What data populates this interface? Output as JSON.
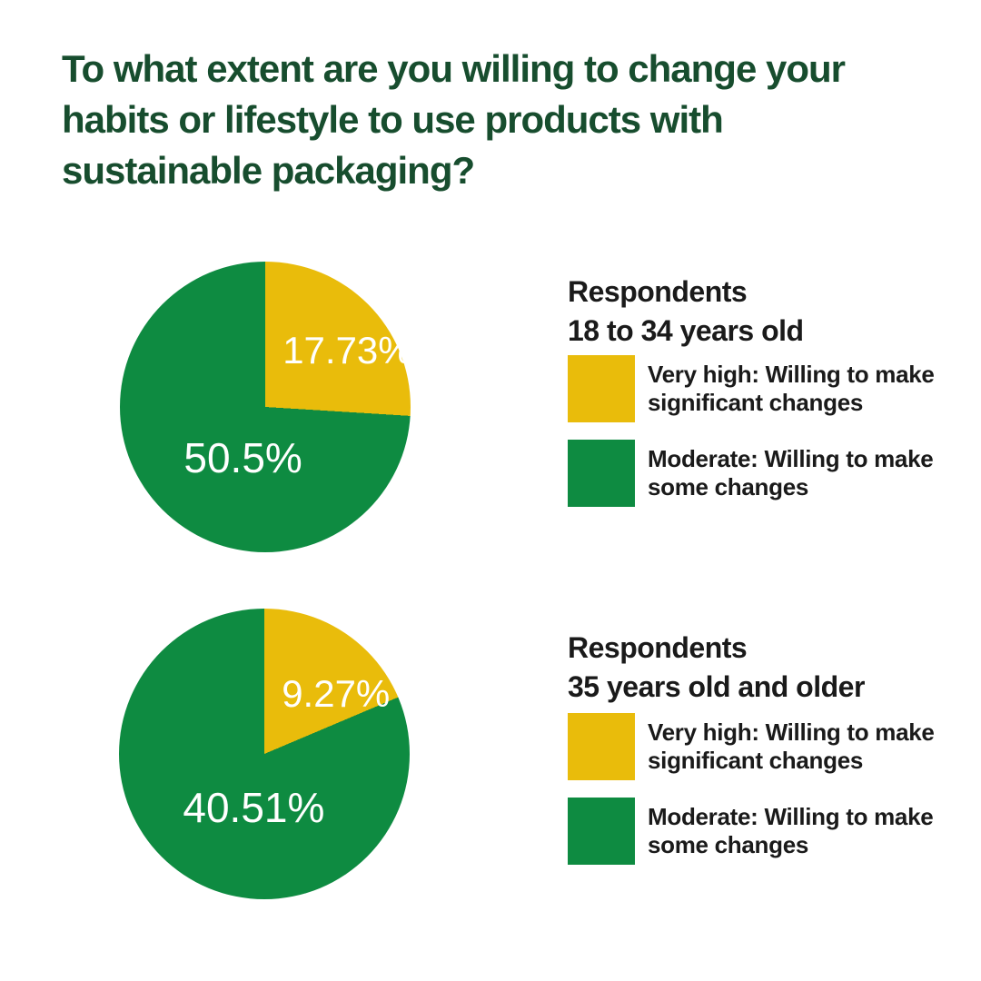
{
  "title": "To what extent are you willing to change your habits or lifestyle to use products with sustainable packaging?",
  "title_lines": [
    "To what extent are you willing to change your",
    "habits or lifestyle to use products with",
    "sustainable packaging?"
  ],
  "colors": {
    "background": "#FFFFFF",
    "title": "#174D2E",
    "text": "#1A1A1A",
    "slice_label": "#FFFFFF",
    "very_high": "#E9BC0B",
    "moderate": "#0E8B41"
  },
  "legend_labels": {
    "very_high": "Very high: Willing to make significant changes",
    "moderate": "Moderate: Willing to make some changes"
  },
  "chart_data": [
    {
      "type": "pie",
      "group_title_line1": "Respondents",
      "group_title_line2": "18 to 34 years old",
      "start_angle_deg": 0,
      "direction": "clockwise",
      "note": "slice arc angles are normalized to the sum of the two values",
      "slices": [
        {
          "label": "Very high: Willing to make significant changes",
          "value_pct": 17.73,
          "display": "17.73%",
          "color_key": "very_high"
        },
        {
          "label": "Moderate: Willing to make some changes",
          "value_pct": 50.5,
          "display": "50.5%",
          "color_key": "moderate"
        }
      ]
    },
    {
      "type": "pie",
      "group_title_line1": "Respondents",
      "group_title_line2": "35 years old and older",
      "start_angle_deg": 0,
      "direction": "clockwise",
      "note": "slice arc angles are normalized to the sum of the two values",
      "slices": [
        {
          "label": "Very high: Willing to make significant changes",
          "value_pct": 9.27,
          "display": "9.27%",
          "color_key": "very_high"
        },
        {
          "label": "Moderate: Willing to make some changes",
          "value_pct": 40.51,
          "display": "40.51%",
          "color_key": "moderate"
        }
      ]
    }
  ]
}
